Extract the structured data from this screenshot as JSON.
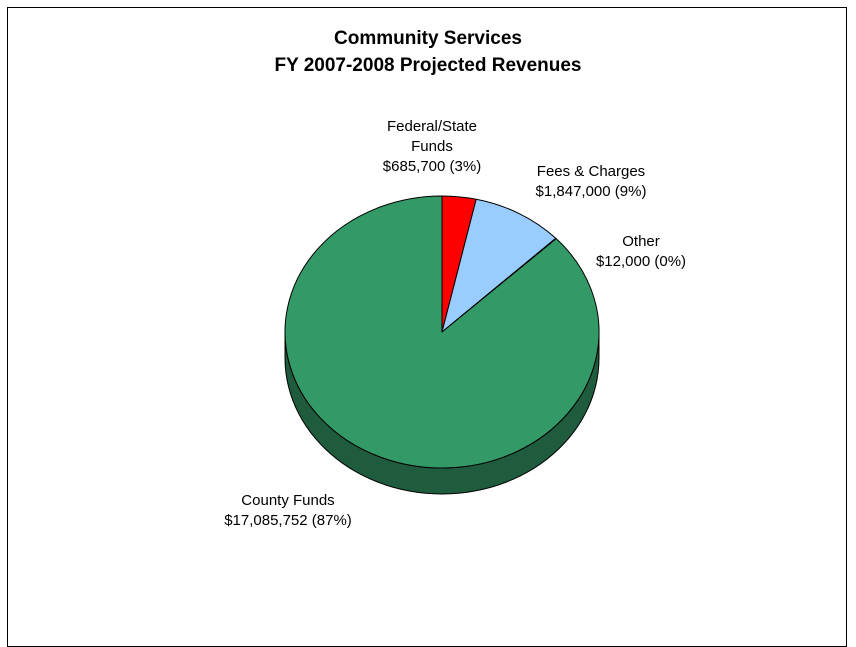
{
  "chart_data": {
    "type": "pie",
    "title": [
      "Community Services",
      "FY 2007-2008 Projected Revenues"
    ],
    "slices": [
      {
        "name": "Federal/State Funds",
        "label_lines": [
          "Federal/State",
          "Funds",
          "$685,700 (3%)"
        ],
        "value": 685700,
        "percent": 3,
        "color": "#ff0000",
        "side_color": "#990000"
      },
      {
        "name": "Fees & Charges",
        "label_lines": [
          "Fees & Charges",
          "$1,847,000 (9%)"
        ],
        "value": 1847000,
        "percent": 9,
        "color": "#99ccff",
        "side_color": "#5c7a99"
      },
      {
        "name": "Other",
        "label_lines": [
          "Other",
          "$12,000 (0%)"
        ],
        "value": 12000,
        "percent": 0,
        "color": "#333399",
        "side_color": "#1f1f5c"
      },
      {
        "name": "County Funds",
        "label_lines": [
          "County Funds",
          "$17,085,752 (87%)"
        ],
        "value": 17085752,
        "percent": 87,
        "color": "#339966",
        "side_color": "#1f5c3d"
      }
    ],
    "style": "3d-pie",
    "legend": "none"
  }
}
